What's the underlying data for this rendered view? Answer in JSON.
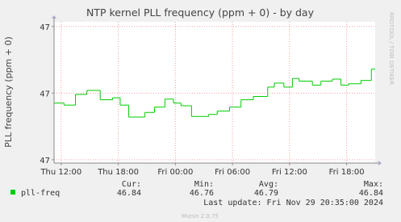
{
  "chart_data": {
    "type": "line",
    "step": true,
    "title": "NTP kernel PLL frequency (ppm + 0) - by day",
    "y_label": "PLL frequency (ppm + 0)",
    "watermark": "RRDTOOL / TOBI OETIKER",
    "footer": "Munin 2.0.75",
    "xlim": [
      11.25,
      45
    ],
    "xticks": [
      {
        "value": 12,
        "label": "Thu 12:00"
      },
      {
        "value": 18,
        "label": "Thu 18:00"
      },
      {
        "value": 24,
        "label": "Fri 00:00"
      },
      {
        "value": 30,
        "label": "Fri 06:00"
      },
      {
        "value": 36,
        "label": "Fri 12:00"
      },
      {
        "value": 42,
        "label": "Fri 18:00"
      }
    ],
    "ylim": [
      46.695,
      46.907
    ],
    "yticks": [
      {
        "value": 46.7,
        "label": "47"
      },
      {
        "value": 46.8,
        "label": "47"
      },
      {
        "value": 46.9,
        "label": "47"
      }
    ],
    "grid": true,
    "series": [
      {
        "name": "pll-freq",
        "color": "#00cc00",
        "x": [
          11.25,
          12.3,
          13.5,
          14.7,
          16.1,
          17.4,
          18.2,
          19.1,
          20.8,
          21.8,
          22.9,
          23.8,
          24.6,
          25.7,
          27.5,
          28.4,
          29.7,
          30.9,
          32.2,
          33.7,
          34.4,
          35.4,
          36.3,
          37.0,
          38.4,
          39.3,
          40.5,
          41.4,
          42.2,
          43.5,
          44.6
        ],
        "values": [
          46.785,
          46.782,
          46.798,
          46.804,
          46.79,
          46.793,
          46.782,
          46.764,
          46.771,
          46.779,
          46.791,
          46.785,
          46.781,
          46.765,
          46.768,
          46.773,
          46.779,
          46.79,
          46.795,
          46.809,
          46.815,
          46.809,
          46.822,
          46.818,
          46.812,
          46.818,
          46.821,
          46.812,
          46.814,
          46.819,
          46.836
        ]
      }
    ],
    "stats": [
      {
        "label": "Cur:",
        "value": 46.84
      },
      {
        "label": "Min:",
        "value": 46.76
      },
      {
        "label": "Avg:",
        "value": 46.79
      },
      {
        "label": "Max:",
        "value": 46.84
      }
    ],
    "last_update": "Last update: Fri Nov 29 20:35:00 2024"
  }
}
